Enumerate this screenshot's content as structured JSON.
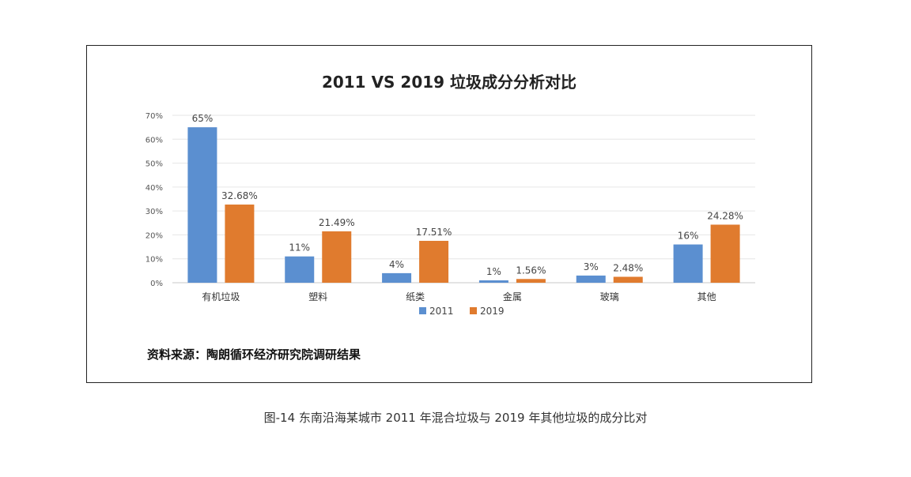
{
  "chart_data": {
    "type": "bar",
    "title": "2011 VS 2019 垃圾成分分析对比",
    "categories": [
      "有机垃圾",
      "塑料",
      "纸类",
      "金属",
      "玻璃",
      "其他"
    ],
    "series": [
      {
        "name": "2011",
        "values": [
          65,
          11,
          4,
          1,
          3,
          16
        ],
        "labels": [
          "65%",
          "11%",
          "4%",
          "1%",
          "3%",
          "16%"
        ],
        "color": "#5b8fd0"
      },
      {
        "name": "2019",
        "values": [
          32.68,
          21.49,
          17.51,
          1.56,
          2.48,
          24.28
        ],
        "labels": [
          "32.68%",
          "21.49%",
          "17.51%",
          "1.56%",
          "2.48%",
          "24.28%"
        ],
        "color": "#e07b2e"
      }
    ],
    "yticks": [
      "0%",
      "10%",
      "20%",
      "30%",
      "40%",
      "50%",
      "60%",
      "70%"
    ],
    "ylim": [
      0,
      70
    ],
    "xlabel": "",
    "ylabel": "",
    "legend": "bottom"
  },
  "source_text": "资料来源：陶朗循环经济研究院调研结果",
  "caption": "图-14  东南沿海某城市 2011 年混合垃圾与 2019 年其他垃圾的成分比对"
}
